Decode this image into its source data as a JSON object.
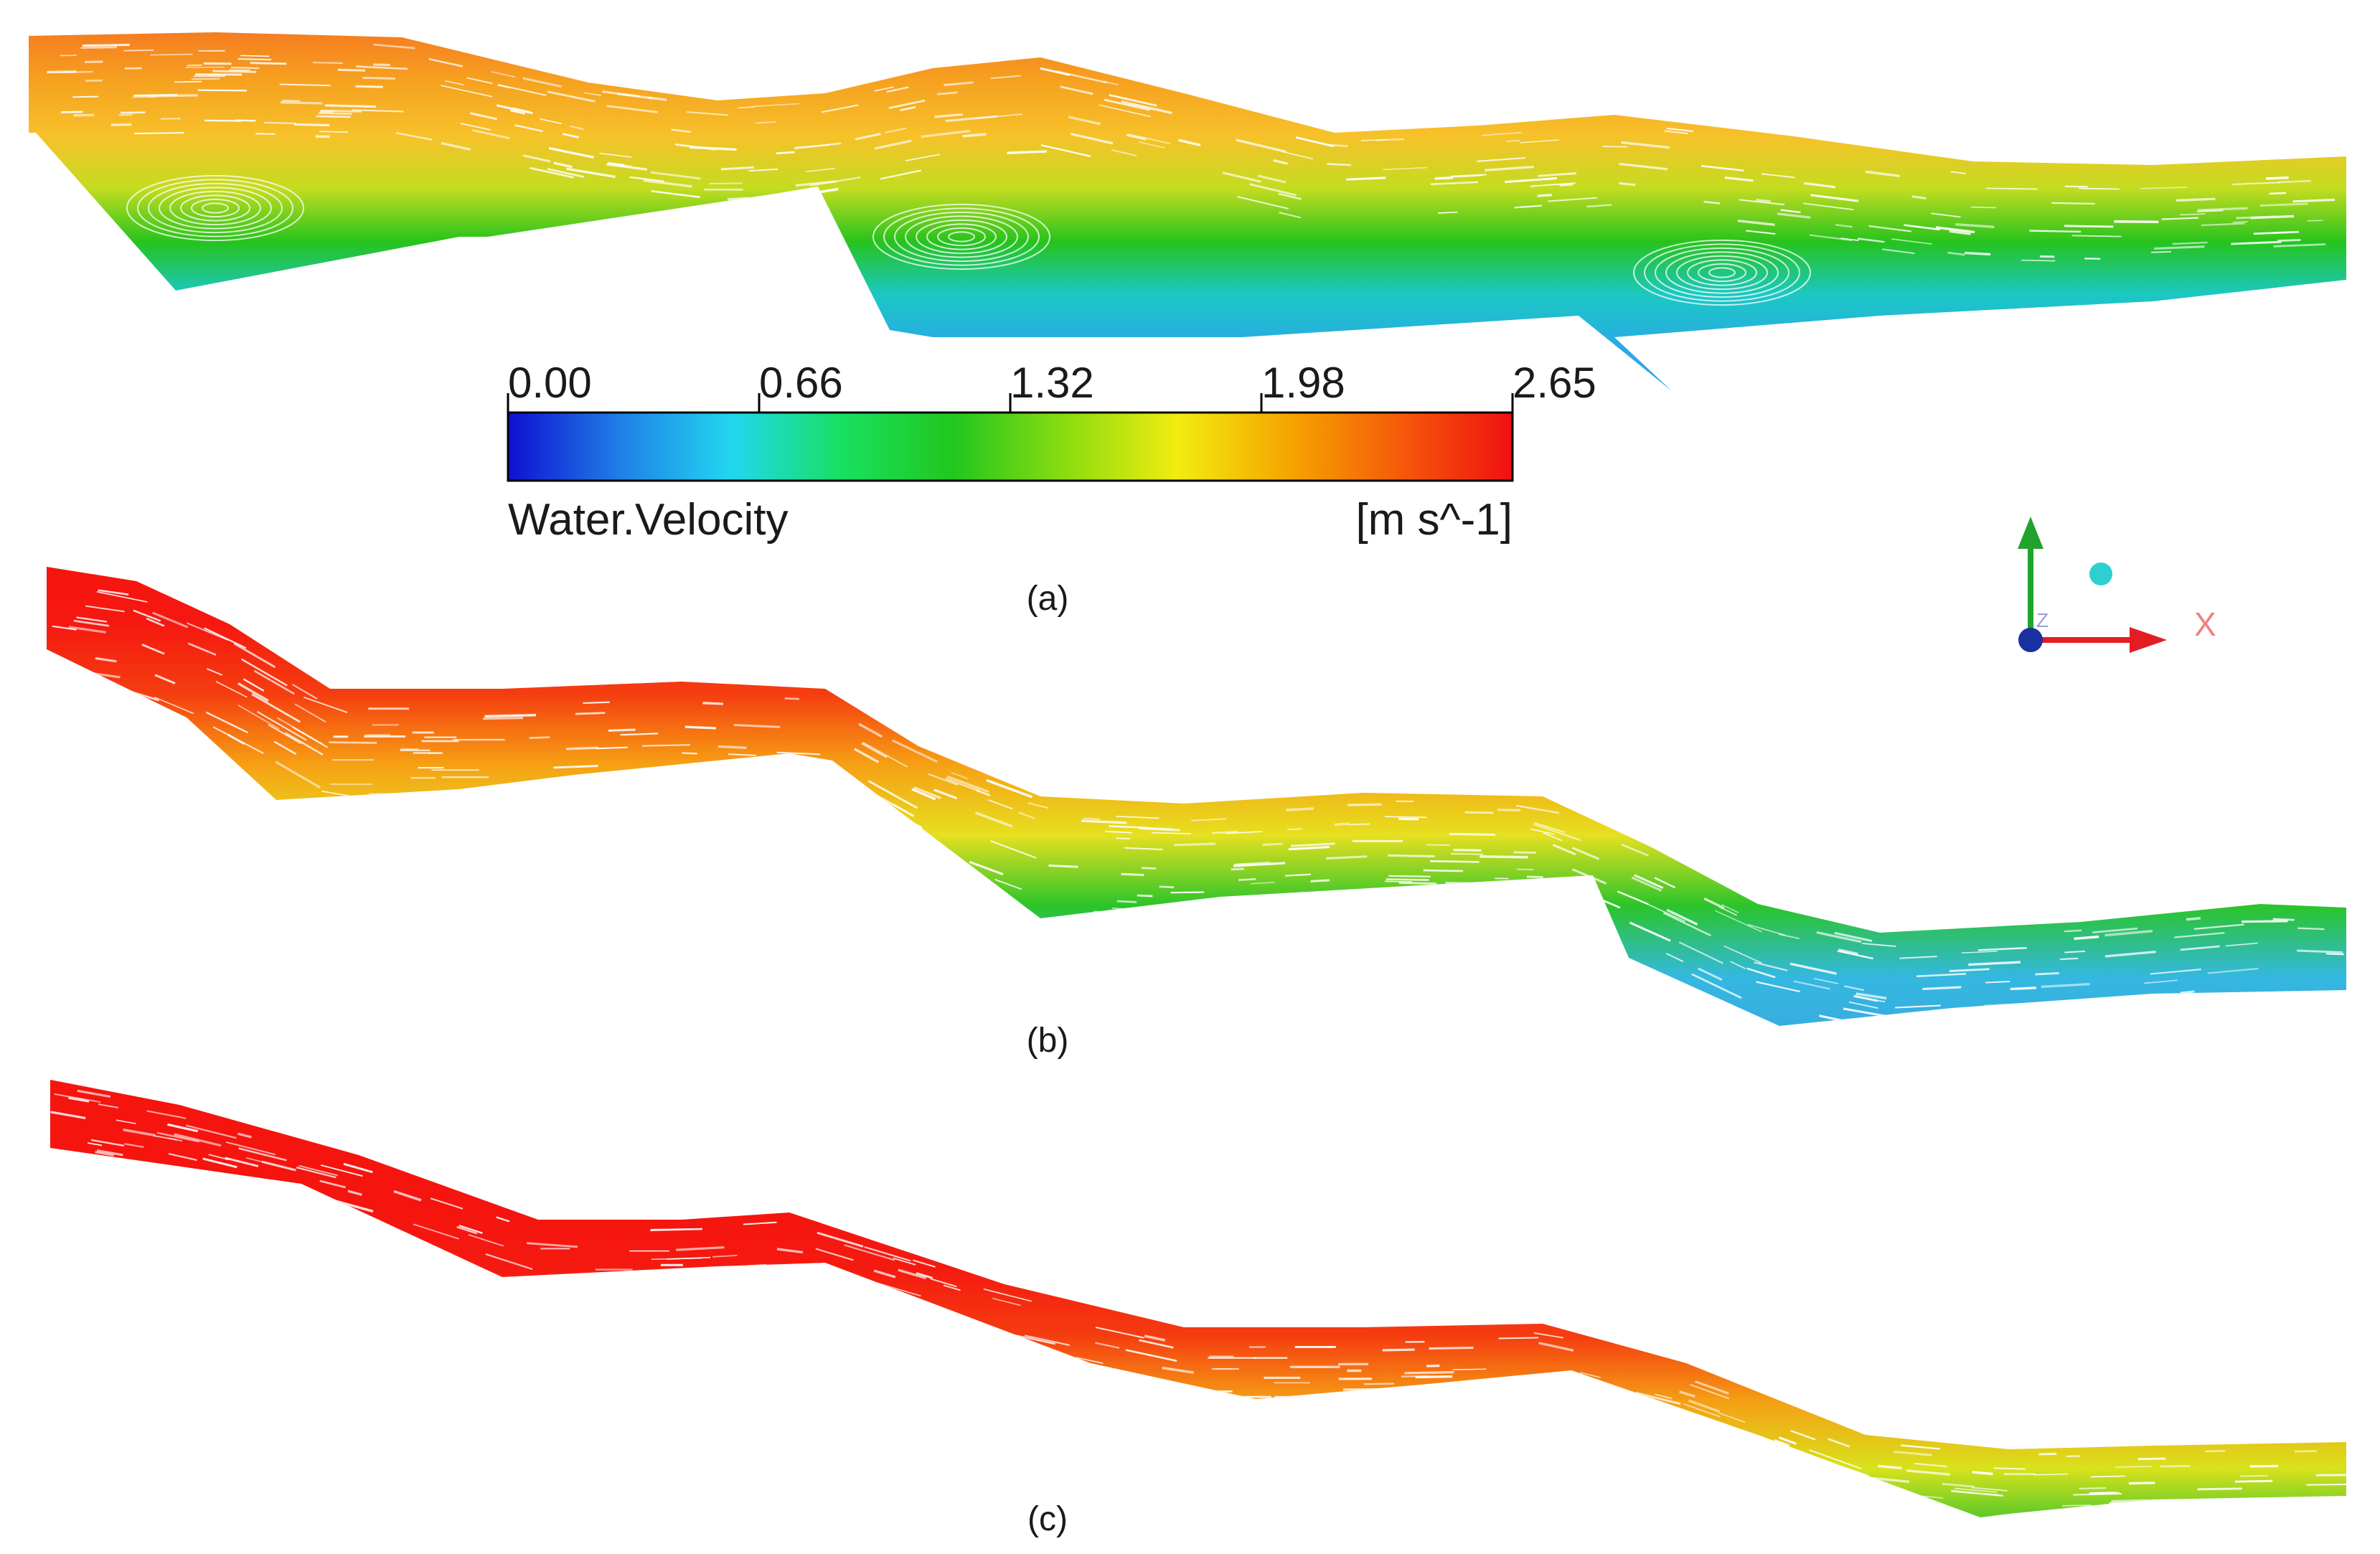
{
  "legend": {
    "ticks": [
      "0.00",
      "0.66",
      "1.32",
      "1.98",
      "2.65"
    ],
    "variable": "Water.Velocity",
    "unit": "[m s^-1]",
    "range": [
      0.0,
      2.65
    ],
    "colors": [
      "#1010d0",
      "#1f7fe8",
      "#22d6f0",
      "#18e060",
      "#22c61e",
      "#8cdc10",
      "#f2ec10",
      "#f5a500",
      "#f55a0a",
      "#f01010"
    ]
  },
  "panels": [
    {
      "label": "(a)",
      "name": "panel-a",
      "stops": [
        "#f57a20",
        "#f6a220",
        "#f7c12a",
        "#c4dc20",
        "#26c31d",
        "#1bc8c4",
        "#2aa9e6",
        "#35a6e4"
      ]
    },
    {
      "label": "(b)",
      "name": "panel-b",
      "stops": [
        "#f5140e",
        "#f51810",
        "#f53e10",
        "#f6a014",
        "#e6e020",
        "#2bc42a",
        "#34b8e0",
        "#3aa8e0"
      ]
    },
    {
      "label": "(c)",
      "name": "panel-c",
      "stops": [
        "#f5140e",
        "#f5140e",
        "#f5140e",
        "#f51a10",
        "#f53c10",
        "#f5a014",
        "#d8e21c",
        "#2ec030"
      ]
    }
  ],
  "axis_triad": {
    "x_label": "X",
    "z_label": "Z",
    "colors": {
      "x": "#e41d25",
      "y": "#21a32b",
      "z": "#1a2fa0",
      "marker": "#2ecfd1"
    }
  }
}
